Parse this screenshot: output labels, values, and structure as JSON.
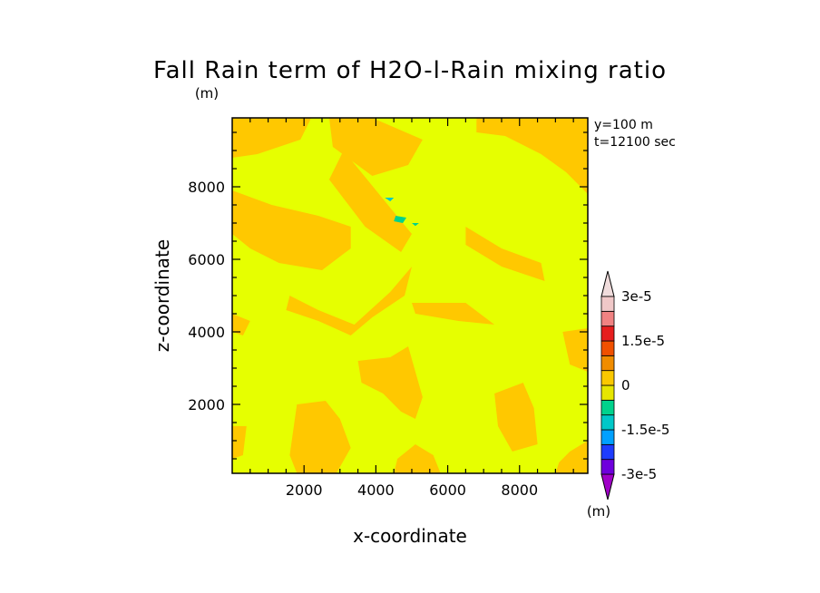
{
  "chart_data": {
    "type": "heatmap",
    "title": "Fall Rain term of H2O-l-Rain mixing ratio",
    "title_units": "(m)",
    "xlabel": "x-coordinate",
    "ylabel": "z-coordinate",
    "xlim": [
      0,
      9900
    ],
    "ylim": [
      100,
      9900
    ],
    "x_ticks": [
      "2000",
      "4000",
      "6000",
      "8000"
    ],
    "y_ticks": [
      "2000",
      "4000",
      "6000",
      "8000"
    ],
    "x_tick_values": [
      2000,
      4000,
      6000,
      8000
    ],
    "y_tick_values": [
      2000,
      4000,
      6000,
      8000
    ],
    "info": [
      "y=100  m",
      "t=12100 sec"
    ],
    "colorbar": {
      "units": "(m)",
      "labels": [
        "3e-5",
        "1.5e-5",
        "0",
        "-1.5e-5",
        "-3e-5"
      ],
      "label_values": [
        3e-05,
        1.5e-05,
        0,
        -1.5e-05,
        -3e-05
      ],
      "levels": [
        -3e-05,
        -2.5e-05,
        -2e-05,
        -1.5e-05,
        -1e-05,
        -5e-06,
        0,
        5e-06,
        1e-05,
        1.5e-05,
        2e-05,
        2.5e-05,
        3e-05
      ],
      "colors_bottom_to_top": [
        "#a000c8",
        "#6e00dc",
        "#1e3cff",
        "#00a0ff",
        "#00c8c8",
        "#00d28c",
        "#e6e600",
        "#fac800",
        "#f08c00",
        "#f05000",
        "#e61e1e",
        "#f08282",
        "#f0c8c8"
      ],
      "under_color": "#a000c8",
      "over_color": "#f0dcdc"
    },
    "field": {
      "background_color": "#e6ff00",
      "positive_color": "#ffc800",
      "negative_colors": [
        "#00d28c",
        "#00c8c8"
      ],
      "positive_regions": [
        [
          [
            0,
            9900
          ],
          [
            2200,
            9900
          ],
          [
            1900,
            9300
          ],
          [
            700,
            8900
          ],
          [
            0,
            8800
          ]
        ],
        [
          [
            2700,
            9900
          ],
          [
            3900,
            9900
          ],
          [
            5300,
            9300
          ],
          [
            4900,
            8600
          ],
          [
            3900,
            8300
          ],
          [
            2800,
            9100
          ]
        ],
        [
          [
            6800,
            9900
          ],
          [
            9900,
            9900
          ],
          [
            9900,
            7800
          ],
          [
            9300,
            8400
          ],
          [
            8600,
            8900
          ],
          [
            7600,
            9400
          ],
          [
            6800,
            9500
          ]
        ],
        [
          [
            0,
            7900
          ],
          [
            1100,
            7500
          ],
          [
            2400,
            7200
          ],
          [
            3300,
            6900
          ],
          [
            3300,
            6300
          ],
          [
            2500,
            5700
          ],
          [
            1300,
            5900
          ],
          [
            500,
            6300
          ],
          [
            0,
            6700
          ]
        ],
        [
          [
            3100,
            9000
          ],
          [
            4500,
            7300
          ],
          [
            5000,
            6700
          ],
          [
            4700,
            6200
          ],
          [
            3700,
            6900
          ],
          [
            2700,
            8200
          ]
        ],
        [
          [
            6500,
            6900
          ],
          [
            7500,
            6300
          ],
          [
            8600,
            5900
          ],
          [
            8700,
            5400
          ],
          [
            7500,
            5800
          ],
          [
            6500,
            6400
          ]
        ],
        [
          [
            1600,
            5000
          ],
          [
            2400,
            4600
          ],
          [
            3400,
            4200
          ],
          [
            4400,
            5100
          ],
          [
            5000,
            5800
          ],
          [
            4800,
            5000
          ],
          [
            3900,
            4400
          ],
          [
            3300,
            3900
          ],
          [
            2400,
            4300
          ],
          [
            1500,
            4600
          ]
        ],
        [
          [
            5000,
            4800
          ],
          [
            6500,
            4800
          ],
          [
            7300,
            4200
          ],
          [
            6300,
            4300
          ],
          [
            5100,
            4500
          ]
        ],
        [
          [
            3500,
            3200
          ],
          [
            4400,
            3300
          ],
          [
            4900,
            3600
          ],
          [
            5300,
            2200
          ],
          [
            5100,
            1600
          ],
          [
            4700,
            1800
          ],
          [
            4200,
            2300
          ],
          [
            3600,
            2600
          ]
        ],
        [
          [
            1800,
            2000
          ],
          [
            2600,
            2100
          ],
          [
            3000,
            1600
          ],
          [
            3300,
            800
          ],
          [
            2900,
            100
          ],
          [
            1800,
            100
          ],
          [
            1600,
            600
          ]
        ],
        [
          [
            4500,
            100
          ],
          [
            5800,
            100
          ],
          [
            5600,
            600
          ],
          [
            5100,
            900
          ],
          [
            4600,
            500
          ]
        ],
        [
          [
            7300,
            2300
          ],
          [
            8100,
            2600
          ],
          [
            8400,
            1900
          ],
          [
            8500,
            900
          ],
          [
            7800,
            700
          ],
          [
            7400,
            1400
          ]
        ],
        [
          [
            9000,
            100
          ],
          [
            9900,
            100
          ],
          [
            9900,
            1000
          ],
          [
            9400,
            700
          ],
          [
            9100,
            400
          ]
        ],
        [
          [
            0,
            1400
          ],
          [
            400,
            1400
          ],
          [
            300,
            600
          ],
          [
            0,
            500
          ]
        ],
        [
          [
            9200,
            4000
          ],
          [
            9900,
            4100
          ],
          [
            9900,
            2900
          ],
          [
            9400,
            3100
          ]
        ],
        [
          [
            0,
            4500
          ],
          [
            500,
            4300
          ],
          [
            300,
            3900
          ],
          [
            0,
            4000
          ]
        ]
      ],
      "negative_regions": [
        [
          [
            4550,
            7200
          ],
          [
            4850,
            7150
          ],
          [
            4750,
            7000
          ],
          [
            4500,
            7050
          ]
        ],
        [
          [
            4250,
            7700
          ],
          [
            4500,
            7700
          ],
          [
            4400,
            7600
          ]
        ],
        [
          [
            5000,
            7000
          ],
          [
            5200,
            7000
          ],
          [
            5100,
            6920
          ]
        ]
      ]
    }
  }
}
